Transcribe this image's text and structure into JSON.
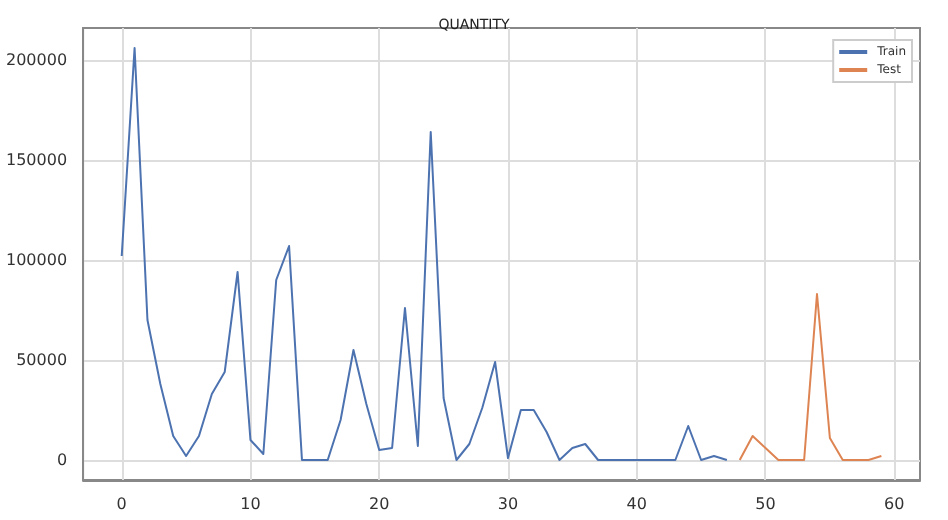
{
  "chart_data": {
    "type": "line",
    "title": "QUANTITY",
    "xlim": [
      -3,
      62
    ],
    "xticks": [
      0,
      10,
      20,
      30,
      40,
      50,
      60
    ],
    "ylim": [
      -10000,
      216000
    ],
    "yticks": [
      0,
      50000,
      100000,
      150000,
      200000
    ],
    "grid": true,
    "legend": "top right",
    "series": [
      {
        "name": "Train",
        "color": "#4c72b0",
        "x": [
          0,
          1,
          2,
          3,
          4,
          5,
          6,
          7,
          8,
          9,
          10,
          11,
          12,
          13,
          14,
          15,
          16,
          17,
          18,
          19,
          20,
          21,
          22,
          23,
          24,
          25,
          26,
          27,
          28,
          29,
          30,
          31,
          32,
          33,
          34,
          35,
          36,
          37,
          38,
          39,
          40,
          41,
          42,
          43,
          44,
          45,
          46,
          47
        ],
        "values": [
          102000,
          206000,
          70000,
          38000,
          12000,
          2000,
          12000,
          33000,
          44000,
          94000,
          10000,
          3000,
          90000,
          107000,
          0,
          0,
          0,
          20000,
          55000,
          28000,
          5000,
          6000,
          76000,
          7000,
          164000,
          31000,
          0,
          8000,
          26000,
          49000,
          1000,
          25000,
          25000,
          14000,
          0,
          6000,
          8000,
          0,
          0,
          0,
          0,
          0,
          0,
          0,
          17000,
          0,
          2000,
          0
        ]
      },
      {
        "name": "Test",
        "color": "#dd8452",
        "x": [
          48,
          49,
          50,
          51,
          52,
          53,
          54,
          55,
          56,
          57,
          58,
          59
        ],
        "values": [
          0,
          12000,
          6000,
          0,
          0,
          0,
          83000,
          11000,
          0,
          0,
          0,
          2000
        ]
      }
    ]
  }
}
